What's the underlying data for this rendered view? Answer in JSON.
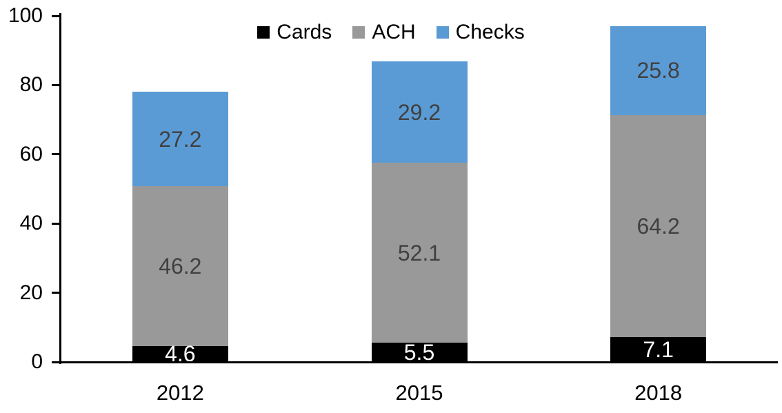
{
  "chart_data": {
    "type": "bar",
    "stacked": true,
    "title": "",
    "xlabel": "",
    "ylabel": "",
    "categories": [
      "2012",
      "2015",
      "2018"
    ],
    "series": [
      {
        "name": "Cards",
        "color": "#000000",
        "label_color": "#ffffff",
        "values": [
          4.6,
          5.5,
          7.1
        ]
      },
      {
        "name": "ACH",
        "color": "#999999",
        "label_color": "#404040",
        "values": [
          46.2,
          52.1,
          64.2
        ]
      },
      {
        "name": "Checks",
        "color": "#5b9bd5",
        "label_color": "#404040",
        "values": [
          27.2,
          29.2,
          25.8
        ]
      }
    ],
    "totals": [
      78.0,
      86.8,
      97.1
    ],
    "ylim": [
      0,
      100
    ],
    "yticks": [
      0,
      20,
      40,
      60,
      80,
      100
    ],
    "grid": false,
    "legend_position": "top-center",
    "axis_color": "#000000",
    "background_color": "#ffffff"
  }
}
